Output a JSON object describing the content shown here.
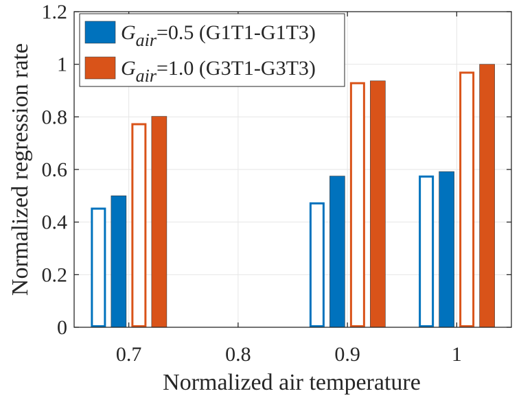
{
  "chart_data": {
    "type": "bar",
    "xlabel": "Normalized air temperature",
    "ylabel": "Normalized regression rate",
    "x_ticks": [
      "0.7",
      "0.8",
      "0.9",
      "1"
    ],
    "y_ticks": [
      "0",
      "0.2",
      "0.4",
      "0.6",
      "0.8",
      "1",
      "1.2"
    ],
    "xlim": [
      0.65,
      1.05
    ],
    "ylim": [
      0,
      1.2
    ],
    "grid": true,
    "legend_position": "top-left",
    "colors": {
      "blue": "#0072BD",
      "orange": "#D95319"
    },
    "legend": [
      {
        "symbol": "G",
        "subscript": "air",
        "text": "=0.5 (G1T1-G1T3)",
        "color": "#0072BD"
      },
      {
        "symbol": "G",
        "subscript": "air",
        "text": "=1.0 (G3T1-G3T3)",
        "color": "#D95319"
      }
    ],
    "series": [
      {
        "color": "#0072BD",
        "fill": "outline",
        "x": [
          0.7,
          0.9,
          1.0
        ],
        "values": [
          0.455,
          0.475,
          0.577
        ]
      },
      {
        "color": "#0072BD",
        "fill": "solid",
        "x": [
          0.7,
          0.9,
          1.0
        ],
        "values": [
          0.5,
          0.575,
          0.592
        ]
      },
      {
        "color": "#D95319",
        "fill": "outline",
        "x": [
          0.7,
          0.9,
          1.0
        ],
        "values": [
          0.776,
          0.932,
          0.972
        ]
      },
      {
        "color": "#D95319",
        "fill": "solid",
        "x": [
          0.7,
          0.9,
          1.0
        ],
        "values": [
          0.802,
          0.937,
          1.0
        ]
      }
    ]
  }
}
